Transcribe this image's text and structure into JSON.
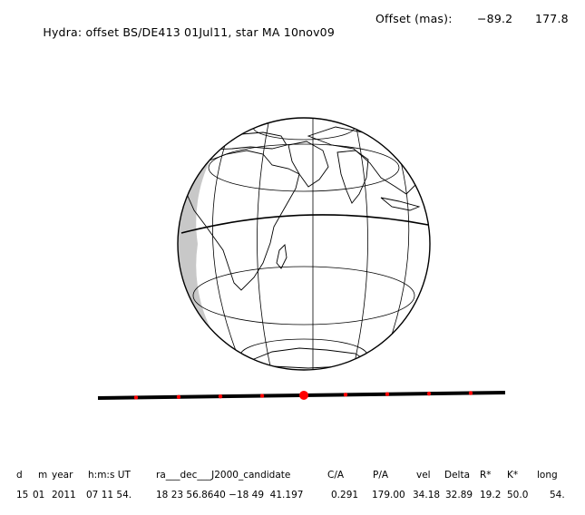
{
  "title": {
    "main": "Hydra: offset BS/DE413 01Jul11, star MA 10nov09",
    "offset_label": "Offset (mas):",
    "offset_ra": "−89.2",
    "offset_dec": "177.8"
  },
  "table": {
    "headers": [
      "d",
      "m",
      "year",
      "h:m:s UT",
      "ra___dec___J2000_candidate",
      "C/A",
      "P/A",
      "vel",
      "Delta",
      "R*",
      "K*",
      "long"
    ],
    "values": [
      "15",
      "01",
      "2011",
      "07 11 54.",
      "18 23 56.8640 −18 49  41.197",
      "0.291",
      "179.00",
      "34.18",
      "32.89",
      "19.2",
      "50.0",
      "54."
    ]
  },
  "colors": {
    "track": "#000000",
    "chord_markers": "#ff0000"
  }
}
